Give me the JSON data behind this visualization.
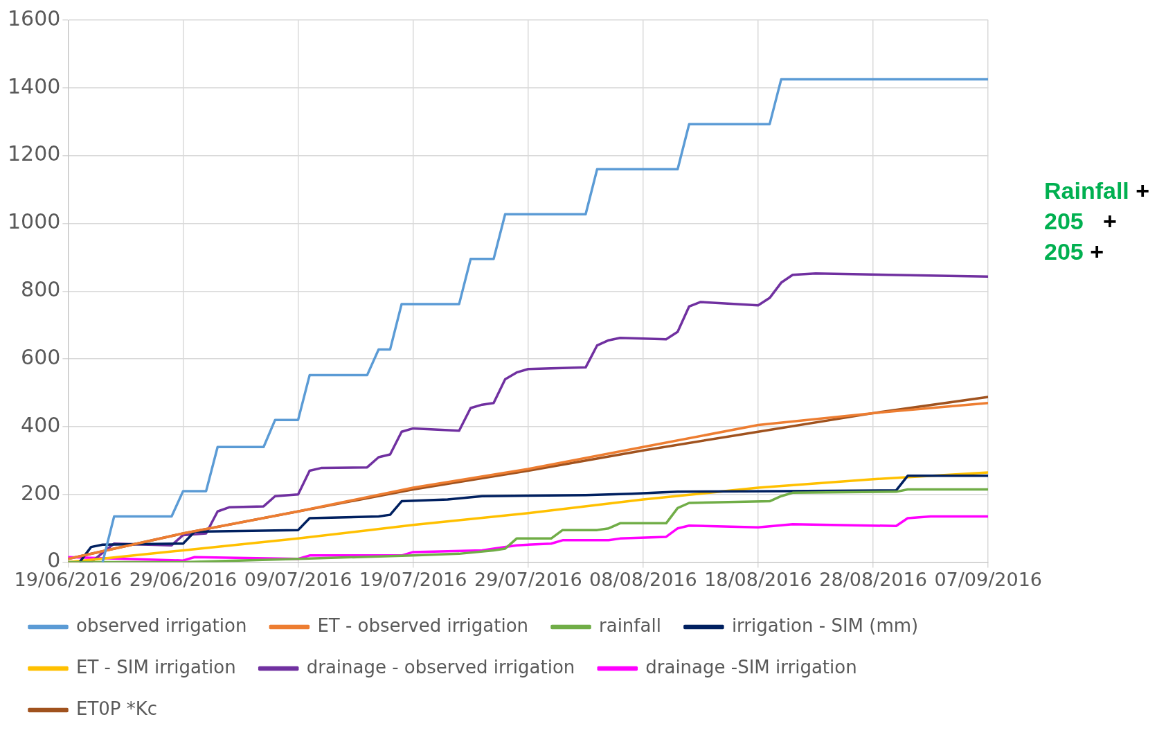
{
  "chart_data": {
    "type": "line",
    "xlim": [
      "2016-06-19",
      "2016-09-07"
    ],
    "xticks": [
      {
        "value": "2016-06-19",
        "label": "19/06/2016"
      },
      {
        "value": "2016-06-29",
        "label": "29/06/2016"
      },
      {
        "value": "2016-07-09",
        "label": "09/07/2016"
      },
      {
        "value": "2016-07-19",
        "label": "19/07/2016"
      },
      {
        "value": "2016-07-29",
        "label": "29/07/2016"
      },
      {
        "value": "2016-08-08",
        "label": "08/08/2016"
      },
      {
        "value": "2016-08-18",
        "label": "18/08/2016"
      },
      {
        "value": "2016-08-28",
        "label": "28/08/2016"
      },
      {
        "value": "2016-09-07",
        "label": "07/09/2016"
      }
    ],
    "ylim": [
      0,
      1600
    ],
    "yticks": [
      0,
      200,
      400,
      600,
      800,
      1000,
      1200,
      1400,
      1600
    ],
    "grid": true,
    "legend": "bottom",
    "annotations": [
      "Rainfall +",
      "205   +",
      "205 +"
    ],
    "series": [
      {
        "name": "observed irrigation",
        "color": "#5b9bd5",
        "x": [
          "2016-06-22",
          "2016-06-23",
          "2016-06-28",
          "2016-06-29",
          "2016-07-01",
          "2016-07-02",
          "2016-07-06",
          "2016-07-07",
          "2016-07-09",
          "2016-07-10",
          "2016-07-15",
          "2016-07-16",
          "2016-07-17",
          "2016-07-18",
          "2016-07-23",
          "2016-07-24",
          "2016-07-26",
          "2016-07-27",
          "2016-08-03",
          "2016-08-04",
          "2016-08-11",
          "2016-08-12",
          "2016-08-19",
          "2016-08-20",
          "2016-09-07"
        ],
        "values": [
          0,
          135,
          135,
          210,
          210,
          340,
          340,
          420,
          420,
          552,
          552,
          628,
          628,
          762,
          762,
          895,
          895,
          1027,
          1027,
          1160,
          1160,
          1293,
          1293,
          1425,
          1425
        ]
      },
      {
        "name": "ET - observed irrigation",
        "color": "#ed7d31",
        "x": [
          "2016-06-19",
          "2016-06-29",
          "2016-07-09",
          "2016-07-19",
          "2016-07-29",
          "2016-08-08",
          "2016-08-18",
          "2016-08-28",
          "2016-09-07"
        ],
        "values": [
          10,
          85,
          150,
          220,
          275,
          340,
          405,
          440,
          470
        ]
      },
      {
        "name": "rainfall",
        "color": "#70ad47",
        "x": [
          "2016-06-19",
          "2016-06-29",
          "2016-07-09",
          "2016-07-19",
          "2016-07-23",
          "2016-07-26",
          "2016-07-27",
          "2016-07-28",
          "2016-07-31",
          "2016-08-01",
          "2016-08-04",
          "2016-08-05",
          "2016-08-06",
          "2016-08-10",
          "2016-08-11",
          "2016-08-12",
          "2016-08-19",
          "2016-08-20",
          "2016-08-21",
          "2016-08-30",
          "2016-08-31",
          "2016-09-07"
        ],
        "values": [
          0,
          0,
          10,
          20,
          25,
          35,
          40,
          70,
          70,
          95,
          95,
          100,
          115,
          115,
          160,
          175,
          180,
          195,
          205,
          208,
          215,
          215
        ]
      },
      {
        "name": "irrigation - SIM (mm)",
        "color": "#002060",
        "x": [
          "2016-06-20",
          "2016-06-21",
          "2016-06-22",
          "2016-06-29",
          "2016-06-30",
          "2016-07-09",
          "2016-07-10",
          "2016-07-16",
          "2016-07-17",
          "2016-07-18",
          "2016-07-22",
          "2016-07-25",
          "2016-08-03",
          "2016-08-07",
          "2016-08-11",
          "2016-08-20",
          "2016-08-30",
          "2016-08-31",
          "2016-09-07"
        ],
        "values": [
          0,
          45,
          52,
          55,
          90,
          95,
          130,
          135,
          140,
          180,
          185,
          195,
          198,
          202,
          208,
          210,
          212,
          255,
          255
        ]
      },
      {
        "name": "ET - SIM irrigation",
        "color": "#ffc000",
        "x": [
          "2016-06-19",
          "2016-06-29",
          "2016-07-09",
          "2016-07-19",
          "2016-07-29",
          "2016-08-08",
          "2016-08-18",
          "2016-08-28",
          "2016-09-07"
        ],
        "values": [
          0,
          35,
          70,
          110,
          145,
          185,
          220,
          245,
          265
        ]
      },
      {
        "name": "drainage - observed irrigation",
        "color": "#7030a0",
        "x": [
          "2016-06-19",
          "2016-06-21",
          "2016-06-23",
          "2016-06-28",
          "2016-06-29",
          "2016-07-01",
          "2016-07-02",
          "2016-07-03",
          "2016-07-06",
          "2016-07-07",
          "2016-07-09",
          "2016-07-10",
          "2016-07-11",
          "2016-07-15",
          "2016-07-16",
          "2016-07-17",
          "2016-07-18",
          "2016-07-19",
          "2016-07-23",
          "2016-07-24",
          "2016-07-25",
          "2016-07-26",
          "2016-07-27",
          "2016-07-28",
          "2016-07-29",
          "2016-08-03",
          "2016-08-04",
          "2016-08-05",
          "2016-08-06",
          "2016-08-10",
          "2016-08-11",
          "2016-08-12",
          "2016-08-13",
          "2016-08-18",
          "2016-08-19",
          "2016-08-20",
          "2016-08-21",
          "2016-08-23",
          "2016-09-07"
        ],
        "values": [
          0,
          0,
          55,
          50,
          80,
          85,
          150,
          162,
          165,
          195,
          200,
          270,
          278,
          280,
          310,
          318,
          385,
          395,
          388,
          455,
          465,
          470,
          540,
          560,
          570,
          575,
          640,
          655,
          662,
          658,
          680,
          755,
          768,
          758,
          780,
          825,
          848,
          852,
          843
        ]
      },
      {
        "name": "drainage -SIM irrigation",
        "color": "#ff00ff",
        "x": [
          "2016-06-19",
          "2016-06-24",
          "2016-06-29",
          "2016-06-30",
          "2016-07-09",
          "2016-07-10",
          "2016-07-18",
          "2016-07-19",
          "2016-07-25",
          "2016-07-26",
          "2016-07-28",
          "2016-07-31",
          "2016-08-01",
          "2016-08-05",
          "2016-08-06",
          "2016-08-10",
          "2016-08-11",
          "2016-08-12",
          "2016-08-18",
          "2016-08-21",
          "2016-08-30",
          "2016-08-31",
          "2016-09-02",
          "2016-09-07"
        ],
        "values": [
          15,
          10,
          5,
          15,
          10,
          20,
          20,
          30,
          35,
          40,
          50,
          55,
          65,
          65,
          70,
          75,
          100,
          108,
          103,
          112,
          107,
          130,
          135,
          135
        ]
      },
      {
        "name": "ET0P *Kc",
        "color": "#a0521e",
        "x": [
          "2016-06-19",
          "2016-06-29",
          "2016-07-09",
          "2016-07-19",
          "2016-07-29",
          "2016-08-08",
          "2016-08-18",
          "2016-08-28",
          "2016-09-07"
        ],
        "values": [
          10,
          85,
          150,
          215,
          270,
          330,
          385,
          440,
          488
        ]
      }
    ]
  }
}
